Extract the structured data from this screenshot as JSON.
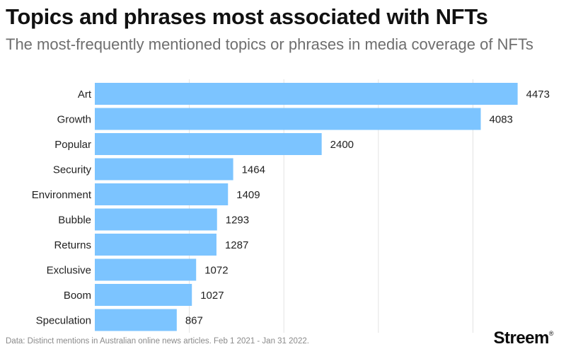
{
  "title": "Topics and phrases most associated with NFTs",
  "subtitle": "The most-frequently mentioned topics or phrases in media coverage of NFTs",
  "footer": "Data: Distinct mentions in Australian online news articles. Feb 1 2021 - Jan 31 2022.",
  "brand": {
    "name": "Streem",
    "mark": "®"
  },
  "colors": {
    "bar": "#7cc4ff",
    "grid": "#e3e3e3",
    "label": "#222222"
  },
  "chart_data": {
    "type": "bar",
    "orientation": "horizontal",
    "categories": [
      "Art",
      "Growth",
      "Popular",
      "Security",
      "Environment",
      "Bubble",
      "Returns",
      "Exclusive",
      "Boom",
      "Speculation"
    ],
    "values": [
      4473,
      4083,
      2400,
      1464,
      1409,
      1293,
      1287,
      1072,
      1027,
      867
    ],
    "xlim": [
      0,
      4850
    ],
    "grid": true,
    "data_labels": true
  }
}
